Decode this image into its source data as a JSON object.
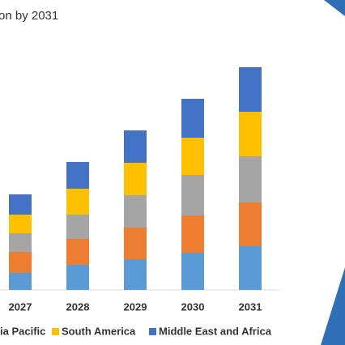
{
  "chart_data": {
    "type": "stacked_bar",
    "title": "on by 2031",
    "categories": [
      "2027",
      "2028",
      "2029",
      "2030",
      "2031"
    ],
    "series": [
      {
        "color": "#5b9bd5",
        "values": [
          21,
          31,
          38,
          46,
          54
        ]
      },
      {
        "color": "#ed7d31",
        "values": [
          26,
          32,
          39,
          46,
          54
        ]
      },
      {
        "name": "ia Pacific",
        "color": "#a5a5a5",
        "values": [
          23,
          30,
          40,
          50,
          57
        ]
      },
      {
        "name": "South America",
        "color": "#ffc000",
        "values": [
          23,
          32,
          40,
          46,
          55
        ]
      },
      {
        "name": "Middle East and Africa",
        "color": "#4472c4",
        "values": [
          25,
          33,
          40,
          48,
          55
        ]
      }
    ],
    "ylim": [
      0,
      275
    ]
  }
}
